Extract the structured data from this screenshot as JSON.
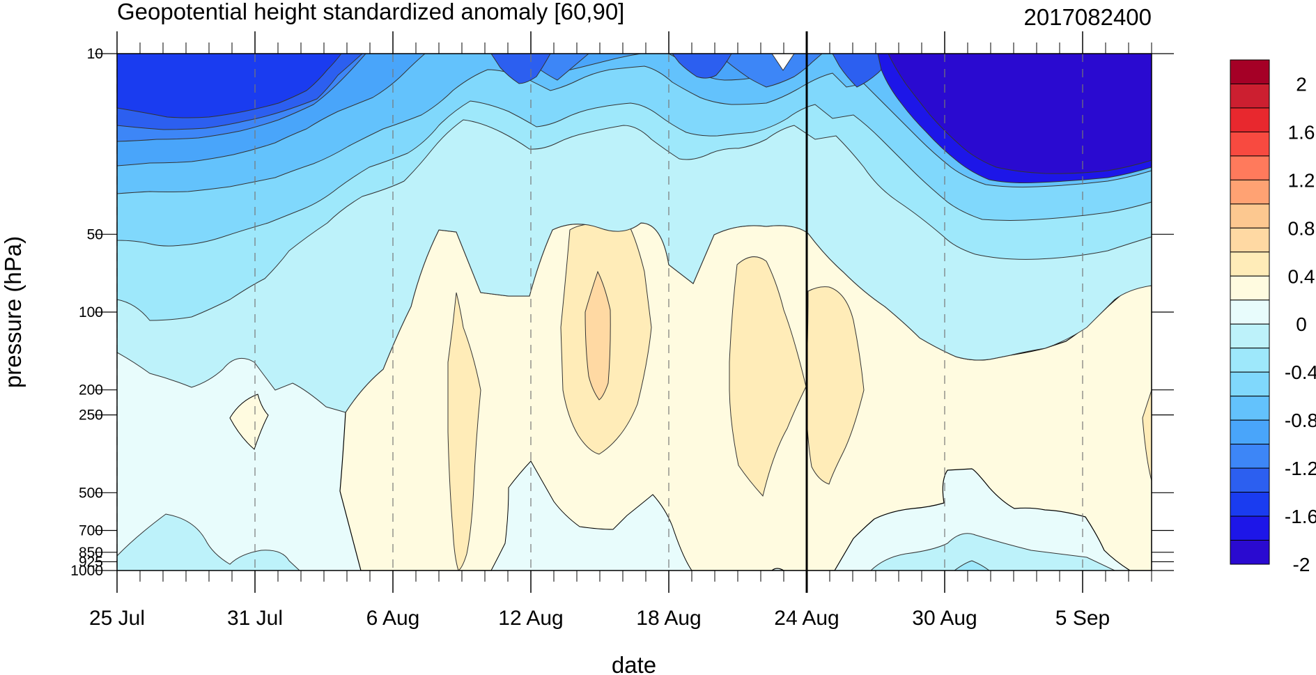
{
  "chart_data": {
    "type": "heatmap",
    "title": "Geopotential height standardized anomaly [60,90]",
    "date_stamp": "2017082400",
    "xlabel": "date",
    "ylabel": "pressure (hPa)",
    "x_range": [
      "2017-07-25",
      "2017-09-08"
    ],
    "y_range": [
      1000,
      10
    ],
    "y_scale": "log",
    "x_ticks": [
      "25 Jul",
      "31 Jul",
      "6 Aug",
      "12 Aug",
      "18 Aug",
      "24 Aug",
      "30 Aug",
      "5 Sep"
    ],
    "x_tick_dates": [
      "2017-07-25",
      "2017-07-31",
      "2017-08-06",
      "2017-08-12",
      "2017-08-18",
      "2017-08-24",
      "2017-08-30",
      "2017-09-05"
    ],
    "y_ticks": [
      "10",
      "50",
      "100",
      "200",
      "250",
      "500",
      "700",
      "850",
      "925",
      "1000"
    ],
    "y_tick_values": [
      10,
      50,
      100,
      200,
      250,
      500,
      700,
      850,
      925,
      1000
    ],
    "current_date_marker": "2017-08-24",
    "colorbar": {
      "labels": [
        "2",
        "1.6",
        "1.2",
        "0.8",
        "0.4",
        "0",
        "-0.4",
        "-0.8",
        "-1.2",
        "-1.6",
        "-2"
      ],
      "label_values": [
        2,
        1.6,
        1.2,
        0.8,
        0.4,
        0,
        -0.4,
        -0.8,
        -1.2,
        -1.6,
        -2
      ],
      "level_step": 0.2,
      "colors_top_to_bottom": [
        "#a50026",
        "#cc1f30",
        "#e8282e",
        "#f84a40",
        "#ff7a5c",
        "#ffa273",
        "#fcc890",
        "#ffd9a3",
        "#ffecb8",
        "#fffbe0",
        "#e8fcfc",
        "#bdf2fa",
        "#9ee8fb",
        "#80d8fc",
        "#63c2fc",
        "#49a5fa",
        "#3d86f7",
        "#2c5ff0",
        "#1a3cf0",
        "#1d16e8",
        "#2a0ad0"
      ]
    }
  }
}
